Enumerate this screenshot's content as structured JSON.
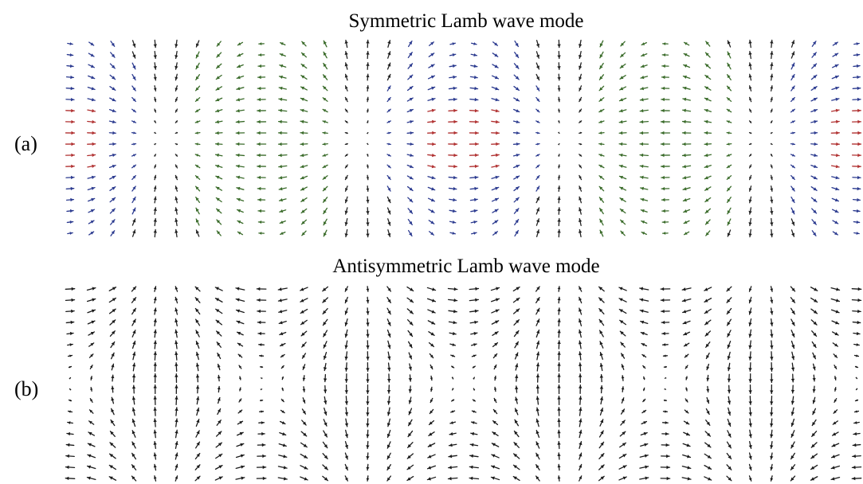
{
  "panels": [
    {
      "id": "a",
      "label": "(a)",
      "title": "Symmetric Lamb wave mode",
      "mode": "symmetric",
      "wavelengths_shown": 2,
      "arrow_colors": {
        "positive_horizontal": "#2b3a8f",
        "negative_horizontal": "#3a6b2a",
        "peak_accent": "#b03030",
        "vertical": "#222222"
      }
    },
    {
      "id": "b",
      "label": "(b)",
      "title": "Antisymmetric Lamb wave mode",
      "mode": "antisymmetric",
      "wavelengths_shown": 2,
      "arrow_colors": {
        "default": "#1a1a1a"
      }
    }
  ]
}
